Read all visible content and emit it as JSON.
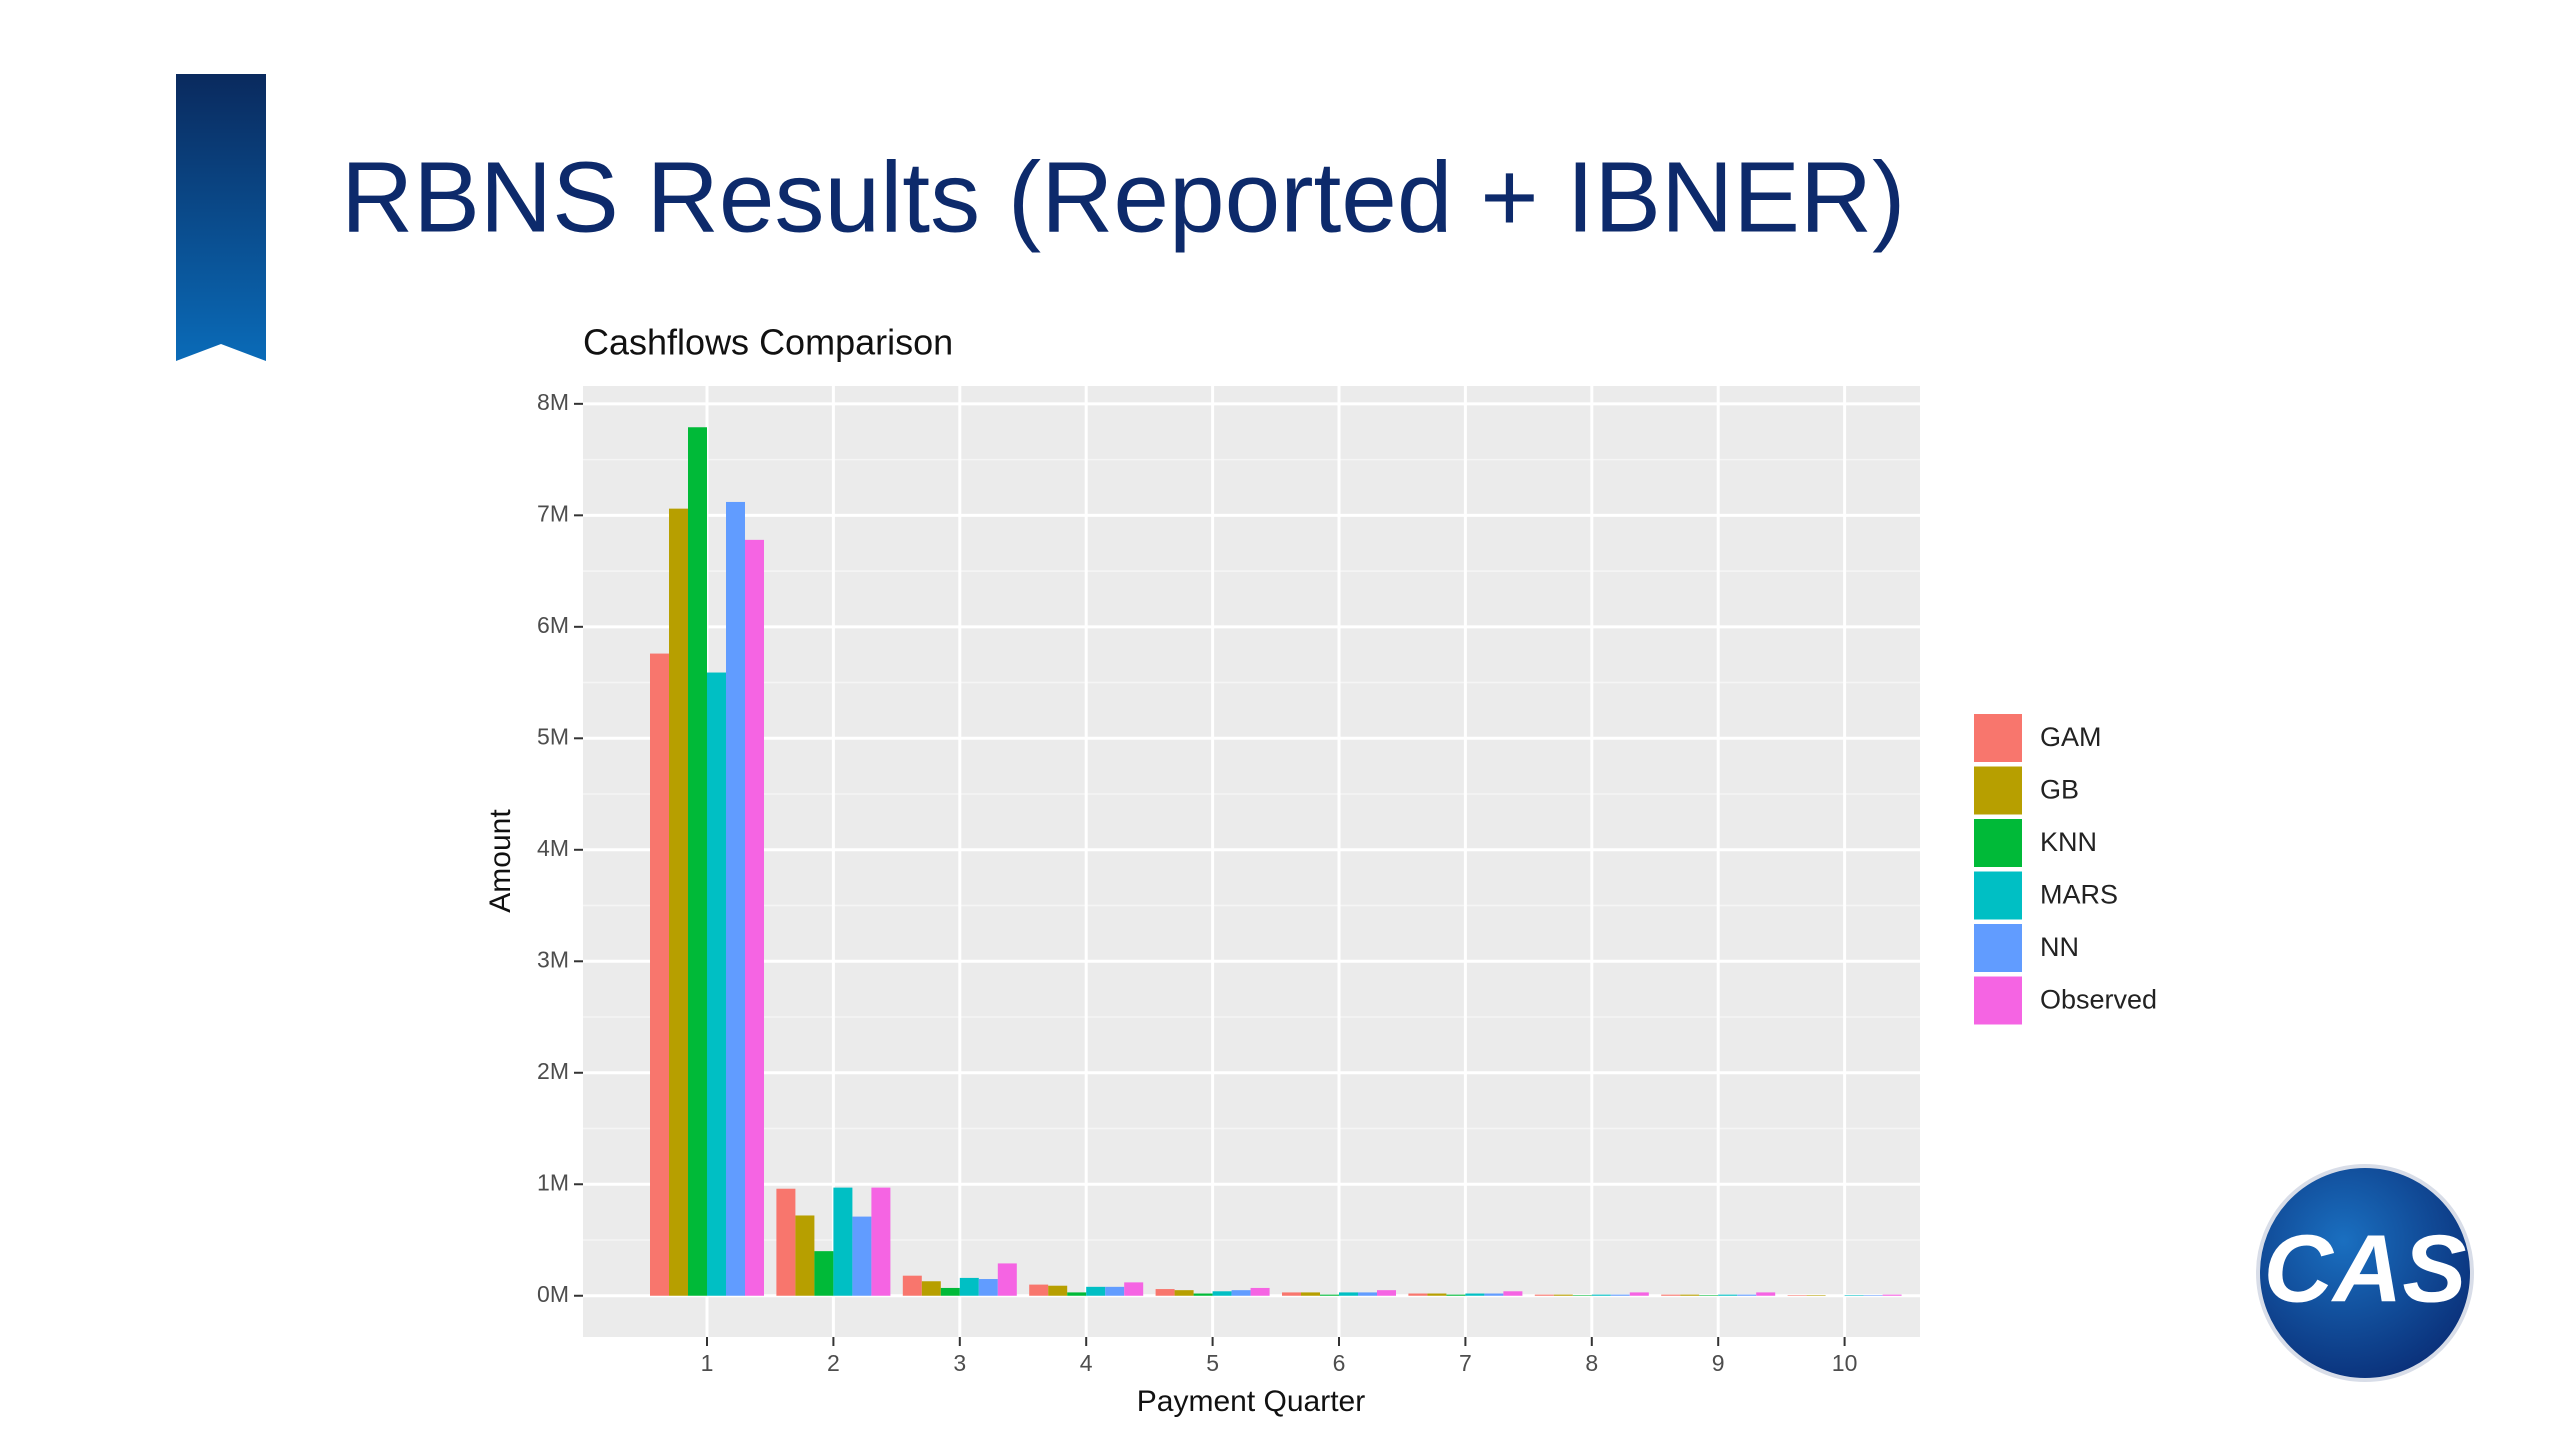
{
  "header": {
    "title": "RBNS Results (Reported + IBNER)",
    "logo": "CAS"
  },
  "chart_data": {
    "type": "bar",
    "title": "Cashflows Comparison",
    "x_label": "Payment Quarter",
    "y_label": "Amount",
    "categories": [
      "1",
      "2",
      "3",
      "4",
      "5",
      "6",
      "7",
      "8",
      "9",
      "10"
    ],
    "series": [
      {
        "name": "GAM",
        "color": "#F8766D",
        "values": [
          5760000,
          960000,
          180000,
          100000,
          60000,
          30000,
          20000,
          10000,
          10000,
          5000
        ]
      },
      {
        "name": "GB",
        "color": "#B79F00",
        "values": [
          7060000,
          720000,
          130000,
          90000,
          50000,
          30000,
          20000,
          10000,
          10000,
          5000
        ]
      },
      {
        "name": "KNN",
        "color": "#00BA38",
        "values": [
          7790000,
          400000,
          70000,
          30000,
          20000,
          10000,
          10000,
          5000,
          5000,
          0
        ]
      },
      {
        "name": "MARS",
        "color": "#00BFC4",
        "values": [
          5590000,
          970000,
          160000,
          80000,
          40000,
          30000,
          20000,
          10000,
          10000,
          5000
        ]
      },
      {
        "name": "NN",
        "color": "#619CFF",
        "values": [
          7120000,
          710000,
          150000,
          80000,
          50000,
          30000,
          20000,
          10000,
          10000,
          5000
        ]
      },
      {
        "name": "Observed",
        "color": "#F564E3",
        "values": [
          6780000,
          970000,
          290000,
          120000,
          70000,
          50000,
          40000,
          30000,
          30000,
          10000
        ]
      }
    ],
    "ylim": [
      -370000,
      8160000
    ],
    "yticks": [
      {
        "value": 0,
        "label": "0M"
      },
      {
        "value": 1000000,
        "label": "1M"
      },
      {
        "value": 2000000,
        "label": "2M"
      },
      {
        "value": 3000000,
        "label": "3M"
      },
      {
        "value": 4000000,
        "label": "4M"
      },
      {
        "value": 5000000,
        "label": "5M"
      },
      {
        "value": 6000000,
        "label": "6M"
      },
      {
        "value": 7000000,
        "label": "7M"
      },
      {
        "value": 8000000,
        "label": "8M"
      }
    ],
    "grid": true,
    "legend": "right"
  }
}
